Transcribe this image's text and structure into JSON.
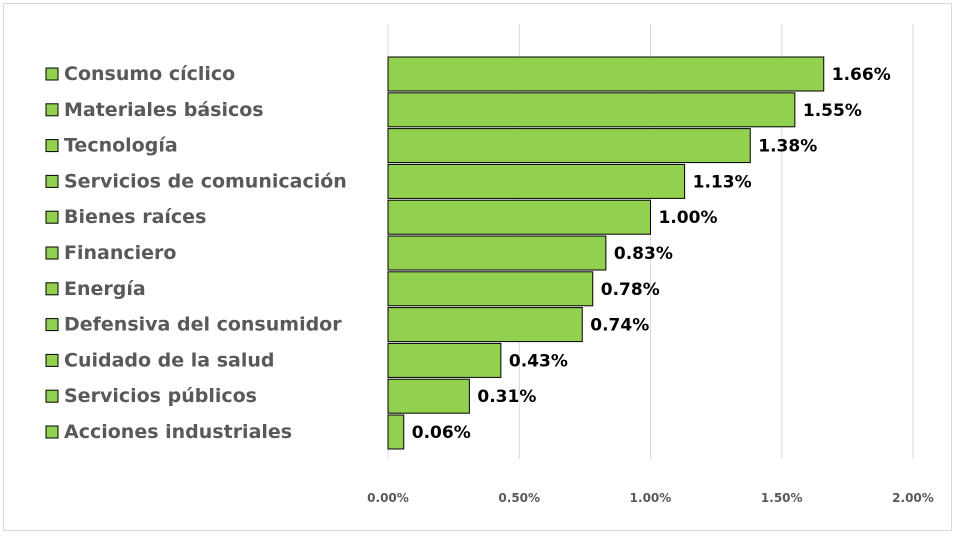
{
  "chart_data": {
    "type": "bar",
    "orientation": "horizontal",
    "categories": [
      "Consumo cíclico",
      "Materiales básicos",
      "Tecnología",
      "Servicios de comunicación",
      "Bienes raíces",
      "Financiero",
      "Energía",
      "Defensiva del consumidor",
      "Cuidado de la salud",
      "Servicios públicos",
      "Acciones industriales"
    ],
    "values": [
      1.66,
      1.55,
      1.38,
      1.13,
      1.0,
      0.83,
      0.78,
      0.74,
      0.43,
      0.31,
      0.06
    ],
    "value_labels": [
      "1.66%",
      "1.55%",
      "1.38%",
      "1.13%",
      "1.00%",
      "0.83%",
      "0.78%",
      "0.74%",
      "0.43%",
      "0.31%",
      "0.06%"
    ],
    "xlim": [
      0,
      2.0
    ],
    "ticks": [
      0,
      0.5,
      1.0,
      1.5,
      2.0
    ],
    "tick_labels": [
      "0.00%",
      "0.50%",
      "1.00%",
      "1.50%",
      "2.00%"
    ],
    "title": "",
    "xlabel": "",
    "ylabel": "",
    "grid": true,
    "legend": "left",
    "bar_color": "#92d050",
    "bar_border_color": "#000000",
    "grid_color": "#d9d9d9"
  }
}
